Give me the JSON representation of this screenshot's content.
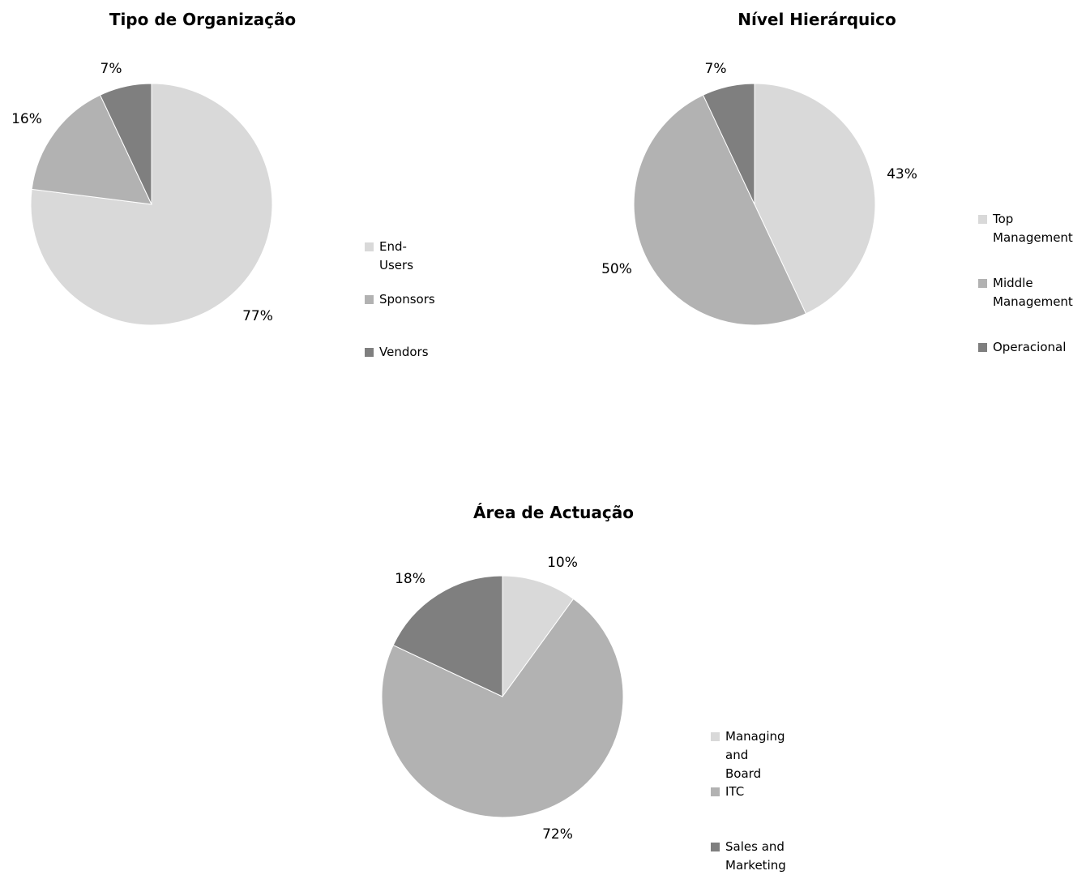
{
  "chart_data": [
    {
      "type": "pie",
      "title": "Tipo de Organização",
      "categories": [
        "End-Users",
        "Sponsors",
        "Vendors"
      ],
      "values": [
        77,
        16,
        7
      ],
      "labels": [
        "77%",
        "16%",
        "7%"
      ],
      "colors": [
        "#d9d9d9",
        "#b2b2b2",
        "#7f7f7f"
      ],
      "legend_position": "right"
    },
    {
      "type": "pie",
      "title": "Nível Hierárquico",
      "categories": [
        "Top\nManagement",
        "Middle\nManagement",
        "Operacional"
      ],
      "values": [
        43,
        50,
        7
      ],
      "labels": [
        "43%",
        "50%",
        "7%"
      ],
      "colors": [
        "#d9d9d9",
        "#b2b2b2",
        "#7f7f7f"
      ],
      "legend_position": "right"
    },
    {
      "type": "pie",
      "title": "Área de Actuação",
      "categories": [
        "Managing and\nBoard",
        "ITC",
        "Sales and\nMarketing"
      ],
      "values": [
        10,
        72,
        18
      ],
      "labels": [
        "10%",
        "72%",
        "18%"
      ],
      "colors": [
        "#d9d9d9",
        "#b2b2b2",
        "#7f7f7f"
      ],
      "legend_position": "right"
    }
  ]
}
